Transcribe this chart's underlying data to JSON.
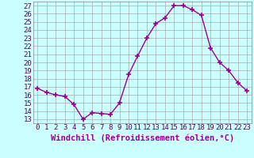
{
  "x": [
    0,
    1,
    2,
    3,
    4,
    5,
    6,
    7,
    8,
    9,
    10,
    11,
    12,
    13,
    14,
    15,
    16,
    17,
    18,
    19,
    20,
    21,
    22,
    23
  ],
  "y": [
    16.8,
    16.3,
    16.0,
    15.8,
    14.8,
    13.0,
    13.8,
    13.7,
    13.6,
    15.0,
    18.5,
    20.8,
    23.0,
    24.8,
    25.5,
    27.0,
    27.0,
    26.5,
    25.8,
    21.8,
    20.0,
    19.0,
    17.5,
    16.5
  ],
  "line_color": "#990099",
  "marker": "+",
  "markersize": 4,
  "markeredgewidth": 1.2,
  "linewidth": 1.0,
  "xlabel": "Windchill (Refroidissement éolien,°C)",
  "xlabel_fontsize": 7.5,
  "ylabel_ticks": [
    13,
    14,
    15,
    16,
    17,
    18,
    19,
    20,
    21,
    22,
    23,
    24,
    25,
    26,
    27
  ],
  "xtick_labels": [
    "0",
    "1",
    "2",
    "3",
    "4",
    "5",
    "6",
    "7",
    "8",
    "9",
    "10",
    "11",
    "12",
    "13",
    "14",
    "15",
    "16",
    "17",
    "18",
    "19",
    "20",
    "21",
    "22",
    "23"
  ],
  "ylim": [
    12.5,
    27.5
  ],
  "xlim": [
    -0.5,
    23.5
  ],
  "bg_color": "#ccffff",
  "grid_color": "#aaaaaa",
  "tick_fontsize": 6.5
}
